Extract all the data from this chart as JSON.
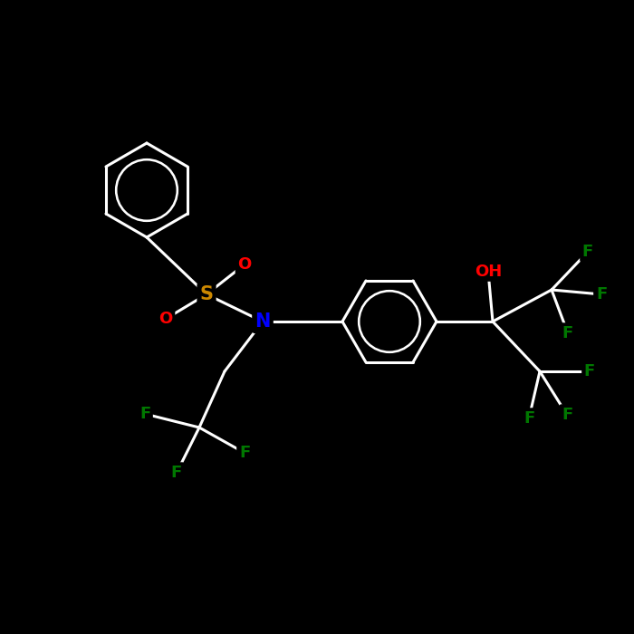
{
  "background_color": "#000000",
  "bond_color": "#ffffff",
  "bond_width": 2.2,
  "atom_colors": {
    "C": "#ffffff",
    "N": "#0000ff",
    "O": "#ff0000",
    "S": "#cc8800",
    "F": "#007700",
    "H": "#ffffff"
  },
  "font_size": 13,
  "font_weight": "bold",
  "figsize": [
    7.0,
    7.0
  ],
  "dpi": 100
}
